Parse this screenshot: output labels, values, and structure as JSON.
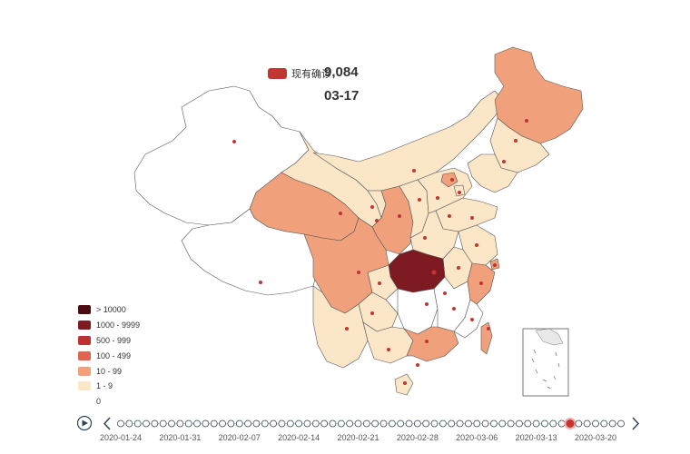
{
  "legend_top": {
    "label": "现有确诊",
    "color": "#c23531"
  },
  "current_count": "9,084",
  "current_date": "03-17",
  "scale_legend": [
    {
      "label": "> 10000",
      "color": "#4a0c11"
    },
    {
      "label": "1000 - 9999",
      "color": "#7d1a22"
    },
    {
      "label": "500 - 999",
      "color": "#c12f32"
    },
    {
      "label": "100 - 499",
      "color": "#e0654e"
    },
    {
      "label": "10 - 99",
      "color": "#f0a07a"
    },
    {
      "label": "1 - 9",
      "color": "#fce6c8"
    },
    {
      "label": "0",
      "color": "#ffffff"
    }
  ],
  "timeline": {
    "labels": [
      "2020-01-24",
      "2020-01-31",
      "2020-02-07",
      "2020-02-14",
      "2020-02-21",
      "2020-02-28",
      "2020-03-06",
      "2020-03-13",
      "2020-03-20"
    ],
    "total_dots": 60,
    "current_index": 53,
    "play_icon": "play-icon",
    "prev_icon": "chevron-left-icon",
    "next_icon": "chevron-right-icon"
  }
}
